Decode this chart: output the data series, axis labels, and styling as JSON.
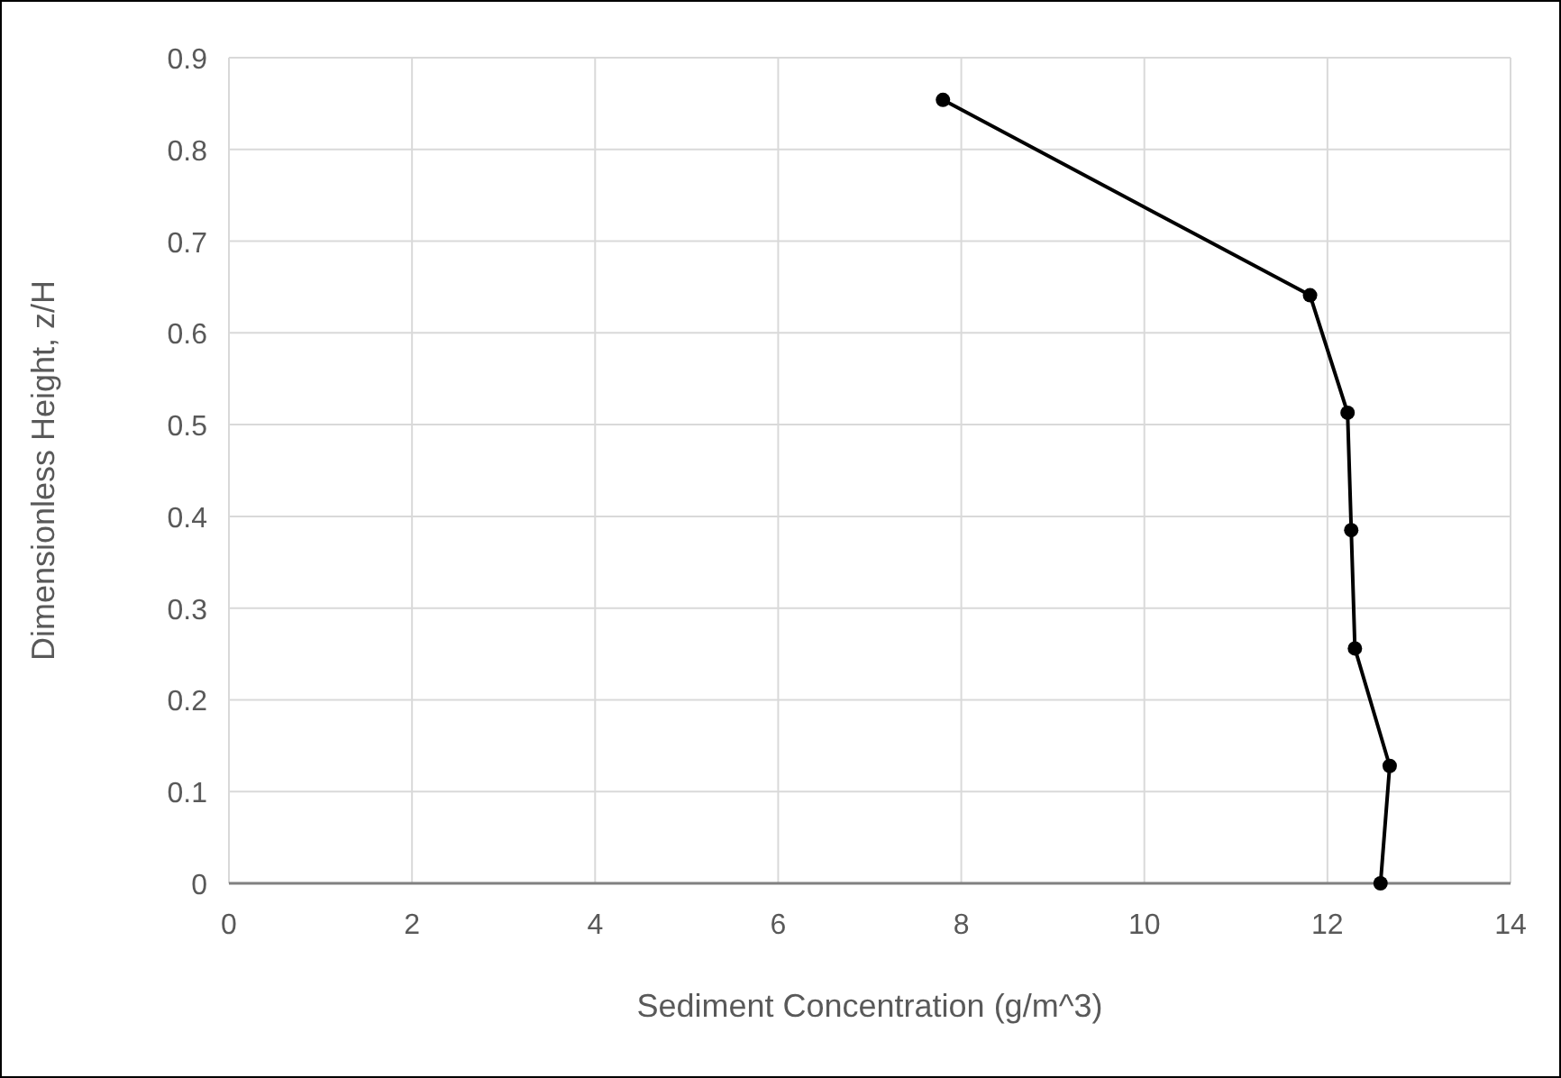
{
  "chart_data": {
    "type": "line",
    "xlabel": "Sediment Concentration (g/m^3)",
    "ylabel": "Dimensionless Height, z/H",
    "x": [
      12.58,
      12.68,
      12.3,
      12.26,
      12.22,
      11.81,
      7.8
    ],
    "values": [
      0,
      0.128,
      0.256,
      0.385,
      0.513,
      0.641,
      0.854
    ],
    "color": "#000000",
    "marker": "circle",
    "line_style": "solid",
    "grid": true,
    "xlim": [
      0,
      14
    ],
    "xticks": [
      0,
      2,
      4,
      6,
      8,
      10,
      12,
      14
    ],
    "ylim": [
      0,
      0.9
    ],
    "yticks": [
      0,
      0.1,
      0.2,
      0.3,
      0.4,
      0.5,
      0.6,
      0.7,
      0.8,
      0.9
    ]
  }
}
